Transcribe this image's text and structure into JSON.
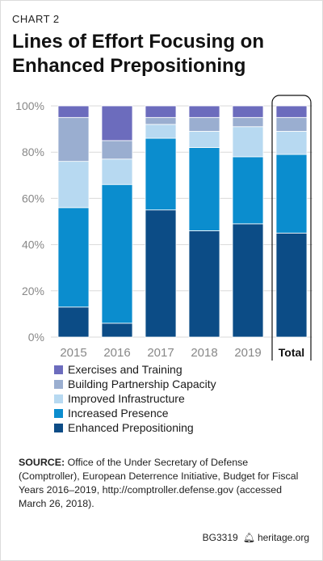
{
  "header": {
    "chart_number": "CHART 2",
    "title_line1": "Lines of Effort Focusing on",
    "title_line2": "Enhanced Prepositioning"
  },
  "source": {
    "label": "SOURCE:",
    "text": "Office of the Under Secretary of Defense (Comptroller), European Deterrence Initiative, Budget for Fiscal Years 2016–2019, http://comptroller.defense.gov (accessed March 26, 2018)."
  },
  "footer": {
    "code": "BG3319",
    "brand": "heritage.org",
    "bell_icon": "liberty-bell-icon"
  },
  "chart_data": {
    "type": "bar",
    "stacked": true,
    "categories": [
      "2015",
      "2016",
      "2017",
      "2018",
      "2019",
      "Total"
    ],
    "highlight_category": "Total",
    "ylim": [
      0,
      100
    ],
    "yticks": [
      "0%",
      "20%",
      "40%",
      "60%",
      "80%",
      "100%"
    ],
    "grid": true,
    "legend_position": "bottom",
    "series": [
      {
        "name": "Enhanced Prepositioning",
        "color": "#0c4c86",
        "values": [
          13,
          6,
          55,
          46,
          49,
          45
        ]
      },
      {
        "name": "Increased Presence",
        "color": "#0b8dce",
        "values": [
          43,
          60,
          31,
          36,
          29,
          34
        ]
      },
      {
        "name": "Improved Infrastructure",
        "color": "#b7d9f1",
        "values": [
          20,
          11,
          6,
          7,
          13,
          10
        ]
      },
      {
        "name": "Building Partnership Capacity",
        "color": "#9aaed0",
        "values": [
          19,
          8,
          3,
          6,
          4,
          6
        ]
      },
      {
        "name": "Exercises and Training",
        "color": "#6c6cbd",
        "values": [
          5,
          15,
          5,
          5,
          5,
          5
        ]
      }
    ]
  }
}
